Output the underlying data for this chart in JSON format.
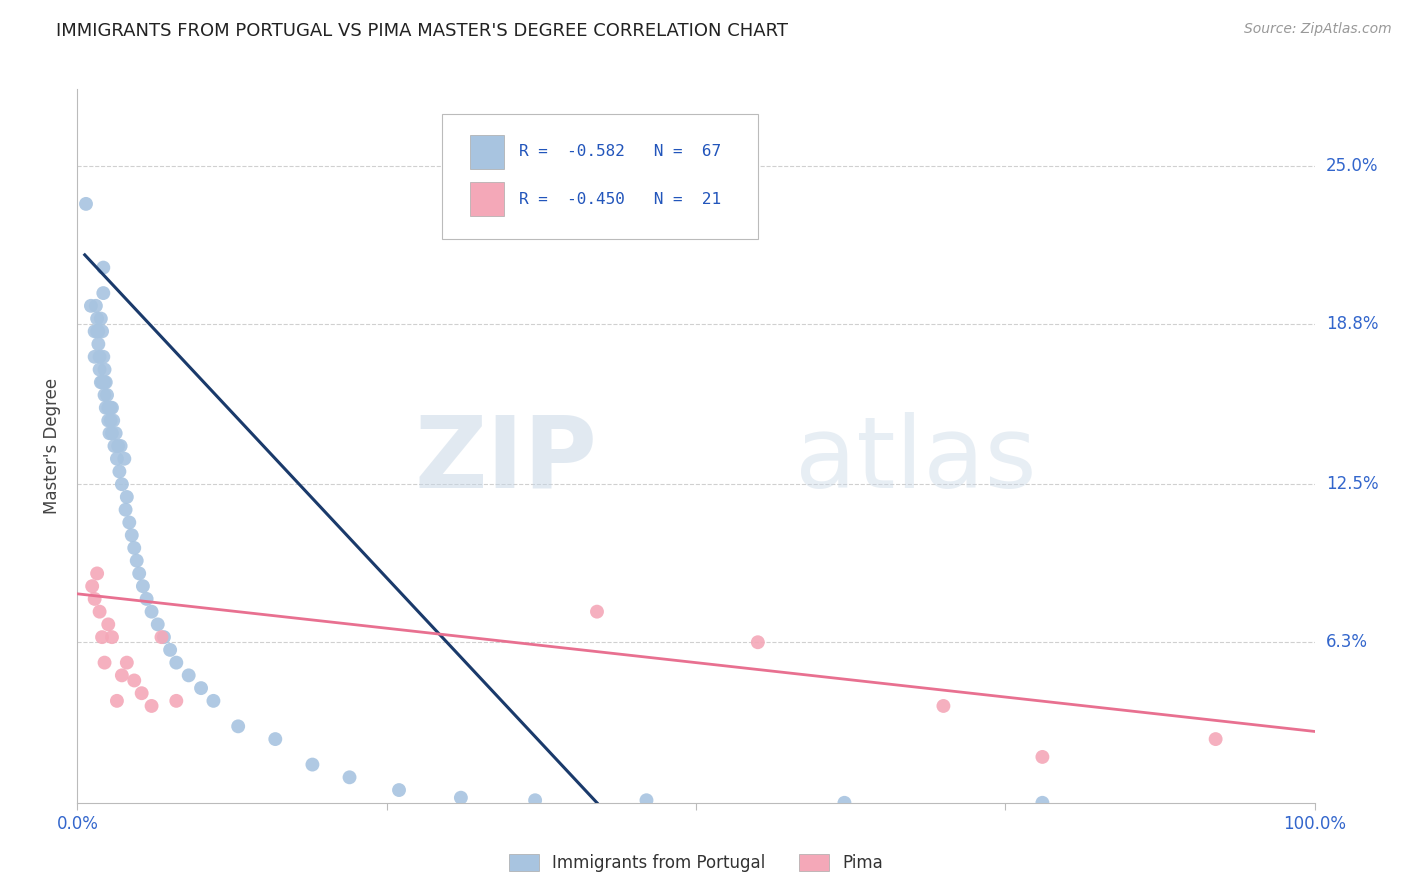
{
  "title": "IMMIGRANTS FROM PORTUGAL VS PIMA MASTER'S DEGREE CORRELATION CHART",
  "source": "Source: ZipAtlas.com",
  "ylabel": "Master's Degree",
  "ytick_labels": [
    "25.0%",
    "18.8%",
    "12.5%",
    "6.3%"
  ],
  "ytick_values": [
    0.25,
    0.188,
    0.125,
    0.063
  ],
  "xlim": [
    0.0,
    1.0
  ],
  "ylim": [
    0.0,
    0.28
  ],
  "legend_blue_r": "-0.582",
  "legend_blue_n": "67",
  "legend_pink_r": "-0.450",
  "legend_pink_n": "21",
  "legend_label_blue": "Immigrants from Portugal",
  "legend_label_pink": "Pima",
  "blue_color": "#a8c4e0",
  "pink_color": "#f4a8b8",
  "line_blue_color": "#1a3a6b",
  "line_pink_color": "#e87090",
  "watermark_zip": "ZIP",
  "watermark_atlas": "atlas",
  "blue_scatter_x": [
    0.007,
    0.011,
    0.014,
    0.014,
    0.015,
    0.016,
    0.016,
    0.017,
    0.017,
    0.018,
    0.018,
    0.019,
    0.019,
    0.02,
    0.02,
    0.021,
    0.021,
    0.021,
    0.022,
    0.022,
    0.022,
    0.023,
    0.023,
    0.024,
    0.025,
    0.025,
    0.026,
    0.027,
    0.027,
    0.028,
    0.028,
    0.029,
    0.03,
    0.031,
    0.032,
    0.033,
    0.034,
    0.035,
    0.036,
    0.038,
    0.039,
    0.04,
    0.042,
    0.044,
    0.046,
    0.048,
    0.05,
    0.053,
    0.056,
    0.06,
    0.065,
    0.07,
    0.075,
    0.08,
    0.09,
    0.1,
    0.11,
    0.13,
    0.16,
    0.19,
    0.22,
    0.26,
    0.31,
    0.37,
    0.46,
    0.62,
    0.78
  ],
  "blue_scatter_y": [
    0.235,
    0.195,
    0.185,
    0.175,
    0.195,
    0.185,
    0.19,
    0.185,
    0.18,
    0.175,
    0.17,
    0.165,
    0.19,
    0.185,
    0.165,
    0.21,
    0.2,
    0.175,
    0.17,
    0.165,
    0.16,
    0.165,
    0.155,
    0.16,
    0.155,
    0.15,
    0.145,
    0.155,
    0.15,
    0.155,
    0.145,
    0.15,
    0.14,
    0.145,
    0.135,
    0.14,
    0.13,
    0.14,
    0.125,
    0.135,
    0.115,
    0.12,
    0.11,
    0.105,
    0.1,
    0.095,
    0.09,
    0.085,
    0.08,
    0.075,
    0.07,
    0.065,
    0.06,
    0.055,
    0.05,
    0.045,
    0.04,
    0.03,
    0.025,
    0.015,
    0.01,
    0.005,
    0.002,
    0.001,
    0.001,
    0.0,
    0.0
  ],
  "pink_scatter_x": [
    0.012,
    0.014,
    0.016,
    0.018,
    0.02,
    0.022,
    0.025,
    0.028,
    0.032,
    0.036,
    0.04,
    0.046,
    0.052,
    0.06,
    0.068,
    0.08,
    0.42,
    0.55,
    0.7,
    0.78,
    0.92
  ],
  "pink_scatter_y": [
    0.085,
    0.08,
    0.09,
    0.075,
    0.065,
    0.055,
    0.07,
    0.065,
    0.04,
    0.05,
    0.055,
    0.048,
    0.043,
    0.038,
    0.065,
    0.04,
    0.075,
    0.063,
    0.038,
    0.018,
    0.025
  ],
  "blue_line_x": [
    0.006,
    0.42
  ],
  "blue_line_y": [
    0.215,
    0.0
  ],
  "pink_line_x": [
    0.0,
    1.0
  ],
  "pink_line_y": [
    0.082,
    0.028
  ],
  "background_color": "#ffffff",
  "grid_color": "#d0d0d0"
}
